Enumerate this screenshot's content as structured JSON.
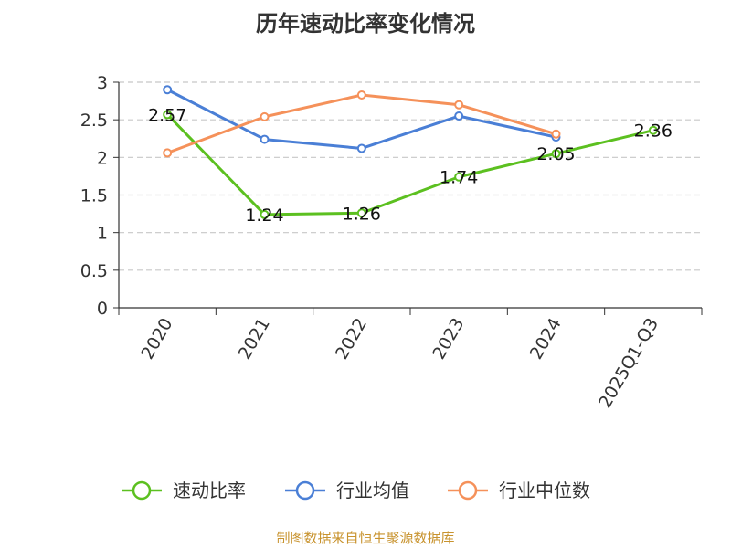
{
  "chart_data": {
    "type": "line",
    "title": "历年速动比率变化情况",
    "categories": [
      "2020",
      "2021",
      "2022",
      "2023",
      "2024",
      "2025Q1-Q3"
    ],
    "ylim": [
      0,
      3
    ],
    "yticks": [
      "0",
      "0.5",
      "1",
      "1.5",
      "2",
      "2.5",
      "3"
    ],
    "grid": true,
    "legend_position": "bottom",
    "series": [
      {
        "name": "速动比率",
        "color": "#5cc020",
        "values": [
          2.57,
          1.24,
          1.26,
          1.74,
          2.05,
          2.36
        ],
        "labels": [
          "2.57",
          "1.24",
          "1.26",
          "1.74",
          "2.05",
          "2.36"
        ]
      },
      {
        "name": "行业均值",
        "color": "#4a7fd6",
        "values": [
          2.9,
          2.24,
          2.12,
          2.55,
          2.27,
          null
        ]
      },
      {
        "name": "行业中位数",
        "color": "#f5915a",
        "values": [
          2.06,
          2.54,
          2.83,
          2.7,
          2.31,
          null
        ]
      }
    ]
  },
  "source_note": "制图数据来自恒生聚源数据库"
}
